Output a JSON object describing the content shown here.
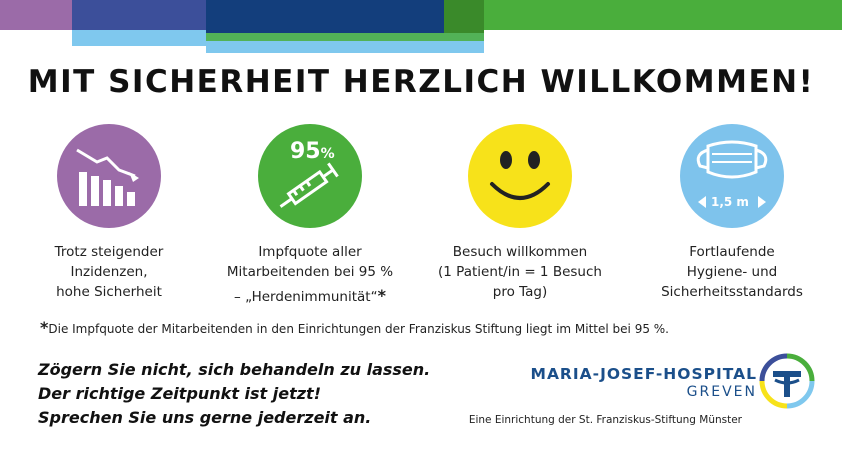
{
  "title": "MIT SICHERHEIT HERZLICH WILLKOMMEN!",
  "colors": {
    "purple": "#9b6ba8",
    "dark_blue": "#3c4f9a",
    "navy": "#133e7c",
    "light_blue": "#7fc8ee",
    "green": "#4aae3c",
    "olive_green": "#3a8a2a",
    "yellow": "#f7e21a",
    "mask_blue": "#7ec3ec",
    "brand_blue": "#1b4f8a"
  },
  "features": [
    {
      "icon": "declining-chart-icon",
      "lines": [
        "Trotz steigender",
        "Inzidenzen,",
        "hohe Sicherheit"
      ]
    },
    {
      "icon": "syringe-icon",
      "badge": "95",
      "badge_unit": "%",
      "lines": [
        "Impfquote aller",
        "Mitarbeitenden bei 95 %",
        "– „Herdenimmunität“"
      ],
      "marker": "*"
    },
    {
      "icon": "smiley-icon",
      "lines": [
        "Besuch willkommen",
        "(1 Patient/in = 1 Besuch",
        "pro Tag)"
      ]
    },
    {
      "icon": "face-mask-icon",
      "badge": "1,5 m",
      "lines": [
        "Fortlaufende",
        "Hygiene- und",
        "Sicherheitsstandards"
      ]
    }
  ],
  "footnote": {
    "marker": "*",
    "text": "Die Impfquote der Mitarbeitenden in den Einrichtungen der Franziskus Stiftung liegt im Mittel bei 95 %."
  },
  "slogan": [
    "Zögern Sie nicht, sich behandeln zu lassen.",
    "Der richtige Zeitpunkt ist jetzt!",
    "Sprechen Sie uns gerne jederzeit an."
  ],
  "hospital": {
    "name": "MARIA-JOSEF-HOSPITAL",
    "city": "GREVEN",
    "subline": "Eine Einrichtung der St. Franziskus-Stiftung Münster"
  }
}
